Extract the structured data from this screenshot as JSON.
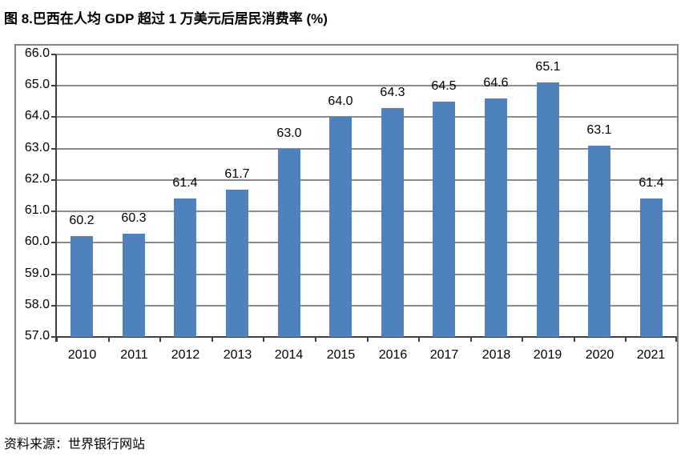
{
  "figure": {
    "title": "图 8.巴西在人均 GDP 超过 1 万美元后居民消费率 (%)",
    "source_note": "资料来源：世界银行网站"
  },
  "chart_data": {
    "type": "bar",
    "title": "图 8.巴西在人均 GDP 超过 1 万美元后居民消费率 (%)",
    "categories": [
      "2010",
      "2011",
      "2012",
      "2013",
      "2014",
      "2015",
      "2016",
      "2017",
      "2018",
      "2019",
      "2020",
      "2021"
    ],
    "values": [
      60.2,
      60.3,
      61.4,
      61.7,
      63.0,
      64.0,
      64.3,
      64.5,
      64.6,
      65.1,
      63.1,
      61.4
    ],
    "value_labels": [
      "60.2",
      "60.3",
      "61.4",
      "61.7",
      "63.0",
      "64.0",
      "64.3",
      "64.5",
      "64.6",
      "65.1",
      "63.1",
      "61.4"
    ],
    "xlabel": "",
    "ylabel": "",
    "ylim": [
      57.0,
      66.0
    ],
    "ytick_step": 1.0,
    "ytick_labels": [
      "66.0",
      "65.0",
      "64.0",
      "63.0",
      "62.0",
      "61.0",
      "60.0",
      "59.0",
      "58.0",
      "57.0"
    ],
    "grid": true,
    "legend": "none",
    "source": "资料来源：世界银行网站",
    "colors": {
      "bar": "#4F81BD",
      "gridline": "#8B8B8B",
      "axis": "#3F3F3F",
      "frame_border": "#848484",
      "text": "#000000"
    }
  }
}
